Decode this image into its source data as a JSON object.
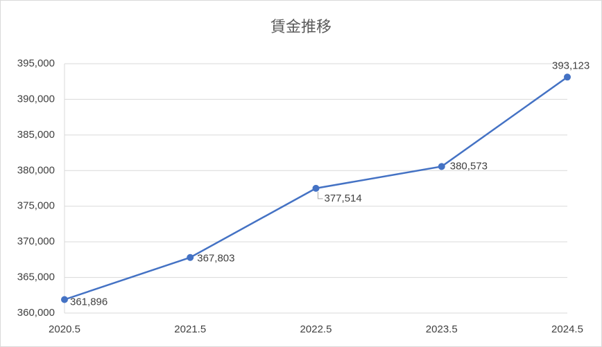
{
  "chart_data": {
    "type": "line",
    "title": "賃金推移",
    "categories": [
      "2020.5",
      "2021.5",
      "2022.5",
      "2023.5",
      "2024.5"
    ],
    "values": [
      361896,
      367803,
      377514,
      380573,
      393123
    ],
    "value_labels": [
      "361,896",
      "367,803",
      "377,514",
      "380,573",
      "393,123"
    ],
    "color": "#4472c4",
    "ylim": [
      360000,
      395000
    ],
    "yticks": [
      {
        "value": 360000,
        "label": "360,000"
      },
      {
        "value": 365000,
        "label": "365,000"
      },
      {
        "value": 370000,
        "label": "370,000"
      },
      {
        "value": 375000,
        "label": "375,000"
      },
      {
        "value": 380000,
        "label": "380,000"
      },
      {
        "value": 385000,
        "label": "385,000"
      },
      {
        "value": 390000,
        "label": "390,000"
      },
      {
        "value": 395000,
        "label": "395,000"
      }
    ],
    "grid": true
  }
}
